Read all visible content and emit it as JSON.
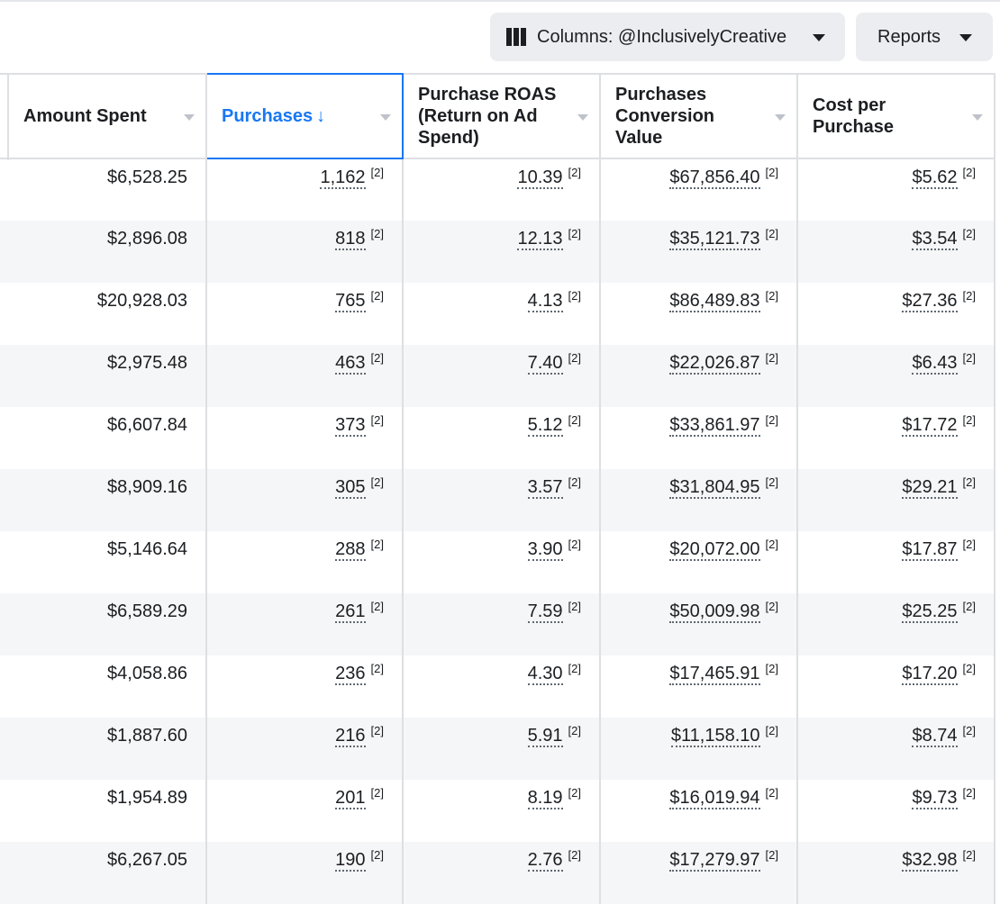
{
  "toolbar": {
    "columns_label": "Columns: @InclusivelyCreative",
    "reports_label": "Reports"
  },
  "table": {
    "headers": [
      "Amount Spent",
      "Purchases",
      "Purchase ROAS (Return on Ad Spend)",
      "Purchases Conversion Value",
      "Cost per Purchase"
    ],
    "sort_arrow": "↓",
    "ref_mark": "[2]",
    "rows": [
      [
        "$6,528.25",
        "1,162",
        "10.39",
        "$67,856.40",
        "$5.62"
      ],
      [
        "$2,896.08",
        "818",
        "12.13",
        "$35,121.73",
        "$3.54"
      ],
      [
        "$20,928.03",
        "765",
        "4.13",
        "$86,489.83",
        "$27.36"
      ],
      [
        "$2,975.48",
        "463",
        "7.40",
        "$22,026.87",
        "$6.43"
      ],
      [
        "$6,607.84",
        "373",
        "5.12",
        "$33,861.97",
        "$17.72"
      ],
      [
        "$8,909.16",
        "305",
        "3.57",
        "$31,804.95",
        "$29.21"
      ],
      [
        "$5,146.64",
        "288",
        "3.90",
        "$20,072.00",
        "$17.87"
      ],
      [
        "$6,589.29",
        "261",
        "7.59",
        "$50,009.98",
        "$25.25"
      ],
      [
        "$4,058.86",
        "236",
        "4.30",
        "$17,465.91",
        "$17.20"
      ],
      [
        "$1,887.60",
        "216",
        "5.91",
        "$11,158.10",
        "$8.74"
      ],
      [
        "$1,954.89",
        "201",
        "8.19",
        "$16,019.94",
        "$9.73"
      ],
      [
        "$6,267.05",
        "190",
        "2.76",
        "$17,279.97",
        "$32.98"
      ]
    ]
  },
  "colors": {
    "accent": "#1877f2",
    "alt_row": "#f5f6f7",
    "border": "#dddfe2",
    "button_bg": "#ebedf0"
  }
}
